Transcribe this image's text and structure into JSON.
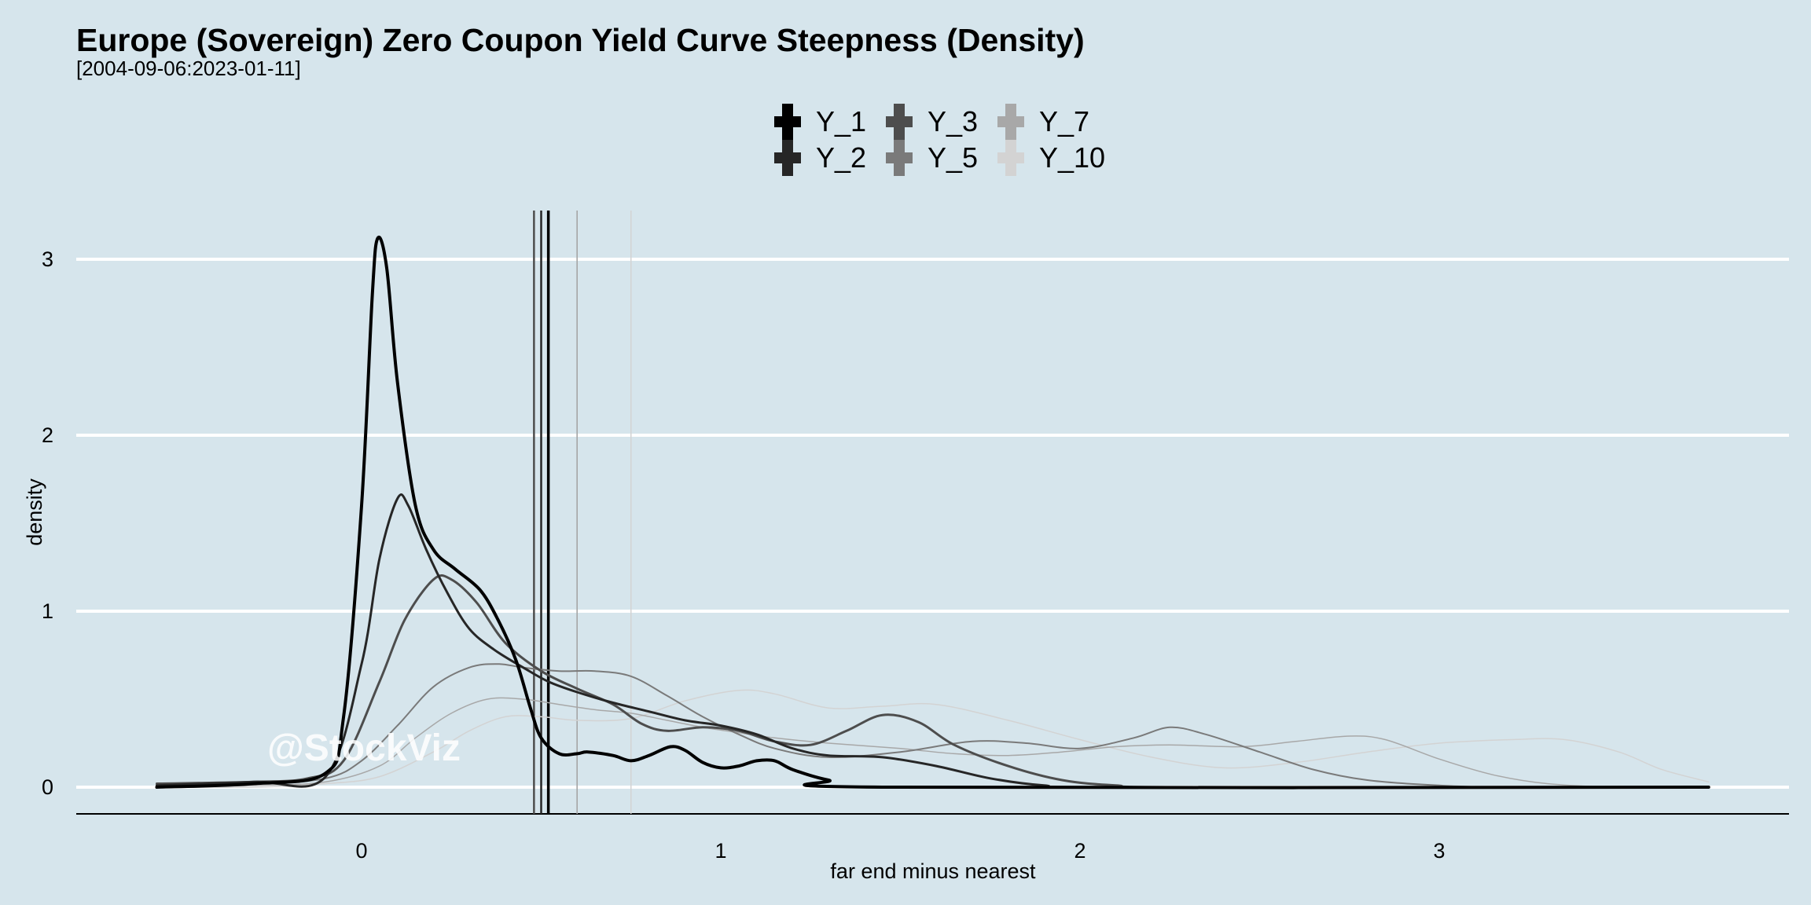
{
  "chart_data": {
    "type": "line",
    "title": "Europe (Sovereign) Zero Coupon Yield Curve Steepness (Density)",
    "subtitle": "[2004-09-06:2023-01-11]",
    "xlabel": "far end minus nearest",
    "ylabel": "density",
    "xlim": [
      -0.8,
      3.96
    ],
    "ylim": [
      -0.15,
      3.3
    ],
    "x_ticks": [
      0,
      1,
      2,
      3
    ],
    "x_tick_labels": [
      "0",
      "1",
      "2",
      "3"
    ],
    "y_ticks": [
      0,
      1,
      2,
      3
    ],
    "y_tick_labels": [
      "0",
      "1",
      "2",
      "3"
    ],
    "grid": "horizontal",
    "legend_position": "top",
    "watermark": "@StockViz",
    "series": [
      {
        "name": "Y_1",
        "color": "#000000",
        "stroke_width": 4,
        "mean": 0.52,
        "points": [
          [
            -0.57,
            0.0
          ],
          [
            -0.3,
            0.02
          ],
          [
            -0.1,
            0.08
          ],
          [
            -0.05,
            0.4
          ],
          [
            0.0,
            1.6
          ],
          [
            0.03,
            2.8
          ],
          [
            0.045,
            3.12
          ],
          [
            0.07,
            2.95
          ],
          [
            0.1,
            2.3
          ],
          [
            0.15,
            1.6
          ],
          [
            0.2,
            1.35
          ],
          [
            0.26,
            1.24
          ],
          [
            0.33,
            1.12
          ],
          [
            0.38,
            0.95
          ],
          [
            0.43,
            0.72
          ],
          [
            0.47,
            0.45
          ],
          [
            0.5,
            0.28
          ],
          [
            0.55,
            0.19
          ],
          [
            0.6,
            0.19
          ],
          [
            0.63,
            0.2
          ],
          [
            0.7,
            0.18
          ],
          [
            0.75,
            0.15
          ],
          [
            0.8,
            0.18
          ],
          [
            0.86,
            0.23
          ],
          [
            0.9,
            0.21
          ],
          [
            0.95,
            0.14
          ],
          [
            1.0,
            0.11
          ],
          [
            1.05,
            0.12
          ],
          [
            1.1,
            0.15
          ],
          [
            1.15,
            0.15
          ],
          [
            1.2,
            0.1
          ],
          [
            1.3,
            0.04
          ],
          [
            1.45,
            0.0
          ],
          [
            3.75,
            0.0
          ]
        ]
      },
      {
        "name": "Y_2",
        "color": "#262626",
        "stroke_width": 3,
        "mean": 0.5,
        "points": [
          [
            -0.57,
            0.01
          ],
          [
            -0.3,
            0.03
          ],
          [
            -0.1,
            0.06
          ],
          [
            0.0,
            0.7
          ],
          [
            0.05,
            1.3
          ],
          [
            0.1,
            1.64
          ],
          [
            0.13,
            1.6
          ],
          [
            0.18,
            1.35
          ],
          [
            0.24,
            1.1
          ],
          [
            0.3,
            0.9
          ],
          [
            0.37,
            0.78
          ],
          [
            0.45,
            0.68
          ],
          [
            0.52,
            0.6
          ],
          [
            0.6,
            0.54
          ],
          [
            0.7,
            0.48
          ],
          [
            0.8,
            0.43
          ],
          [
            0.9,
            0.38
          ],
          [
            1.0,
            0.35
          ],
          [
            1.1,
            0.3
          ],
          [
            1.2,
            0.22
          ],
          [
            1.3,
            0.18
          ],
          [
            1.45,
            0.17
          ],
          [
            1.6,
            0.12
          ],
          [
            1.75,
            0.05
          ],
          [
            1.9,
            0.01
          ],
          [
            2.1,
            0.0
          ],
          [
            3.75,
            0.0
          ]
        ]
      },
      {
        "name": "Y_3",
        "color": "#4d4d4d",
        "stroke_width": 3,
        "mean": 0.48,
        "points": [
          [
            -0.57,
            0.02
          ],
          [
            -0.3,
            0.03
          ],
          [
            -0.15,
            0.05
          ],
          [
            -0.05,
            0.15
          ],
          [
            0.05,
            0.6
          ],
          [
            0.12,
            0.95
          ],
          [
            0.2,
            1.18
          ],
          [
            0.25,
            1.18
          ],
          [
            0.32,
            1.05
          ],
          [
            0.4,
            0.82
          ],
          [
            0.5,
            0.66
          ],
          [
            0.6,
            0.56
          ],
          [
            0.7,
            0.47
          ],
          [
            0.78,
            0.36
          ],
          [
            0.85,
            0.32
          ],
          [
            0.95,
            0.34
          ],
          [
            1.05,
            0.32
          ],
          [
            1.15,
            0.26
          ],
          [
            1.25,
            0.24
          ],
          [
            1.35,
            0.32
          ],
          [
            1.45,
            0.41
          ],
          [
            1.55,
            0.37
          ],
          [
            1.65,
            0.24
          ],
          [
            1.8,
            0.12
          ],
          [
            1.95,
            0.04
          ],
          [
            2.1,
            0.01
          ],
          [
            2.3,
            0.0
          ],
          [
            3.75,
            0.0
          ]
        ]
      },
      {
        "name": "Y_5",
        "color": "#7a7a7a",
        "stroke_width": 2,
        "mean": 0.6,
        "points": [
          [
            -0.57,
            0.01
          ],
          [
            -0.3,
            0.02
          ],
          [
            -0.1,
            0.05
          ],
          [
            0.0,
            0.15
          ],
          [
            0.1,
            0.35
          ],
          [
            0.2,
            0.57
          ],
          [
            0.3,
            0.68
          ],
          [
            0.38,
            0.7
          ],
          [
            0.45,
            0.68
          ],
          [
            0.55,
            0.66
          ],
          [
            0.65,
            0.66
          ],
          [
            0.75,
            0.63
          ],
          [
            0.85,
            0.52
          ],
          [
            0.95,
            0.4
          ],
          [
            1.05,
            0.3
          ],
          [
            1.15,
            0.22
          ],
          [
            1.3,
            0.17
          ],
          [
            1.5,
            0.2
          ],
          [
            1.7,
            0.26
          ],
          [
            1.85,
            0.25
          ],
          [
            2.0,
            0.22
          ],
          [
            2.15,
            0.28
          ],
          [
            2.25,
            0.34
          ],
          [
            2.35,
            0.3
          ],
          [
            2.5,
            0.2
          ],
          [
            2.65,
            0.1
          ],
          [
            2.8,
            0.04
          ],
          [
            3.0,
            0.01
          ],
          [
            3.2,
            0.0
          ],
          [
            3.75,
            0.0
          ]
        ]
      },
      {
        "name": "Y_7",
        "color": "#a8a8a8",
        "stroke_width": 1.5,
        "mean": 0.6,
        "points": [
          [
            -0.57,
            0.0
          ],
          [
            -0.3,
            0.01
          ],
          [
            -0.1,
            0.03
          ],
          [
            0.05,
            0.12
          ],
          [
            0.15,
            0.28
          ],
          [
            0.25,
            0.42
          ],
          [
            0.35,
            0.5
          ],
          [
            0.45,
            0.5
          ],
          [
            0.55,
            0.47
          ],
          [
            0.65,
            0.44
          ],
          [
            0.75,
            0.42
          ],
          [
            0.85,
            0.38
          ],
          [
            0.95,
            0.34
          ],
          [
            1.05,
            0.31
          ],
          [
            1.15,
            0.28
          ],
          [
            1.3,
            0.25
          ],
          [
            1.5,
            0.22
          ],
          [
            1.65,
            0.19
          ],
          [
            1.8,
            0.18
          ],
          [
            1.95,
            0.2
          ],
          [
            2.1,
            0.23
          ],
          [
            2.25,
            0.24
          ],
          [
            2.45,
            0.23
          ],
          [
            2.6,
            0.26
          ],
          [
            2.75,
            0.29
          ],
          [
            2.85,
            0.27
          ],
          [
            3.0,
            0.16
          ],
          [
            3.15,
            0.07
          ],
          [
            3.3,
            0.02
          ],
          [
            3.5,
            0.0
          ],
          [
            3.75,
            0.0
          ]
        ]
      },
      {
        "name": "Y_10",
        "color": "#d3d3d3",
        "stroke_width": 1.5,
        "mean": 0.75,
        "points": [
          [
            -0.57,
            0.0
          ],
          [
            -0.3,
            0.0
          ],
          [
            -0.1,
            0.02
          ],
          [
            0.05,
            0.06
          ],
          [
            0.2,
            0.2
          ],
          [
            0.3,
            0.32
          ],
          [
            0.4,
            0.4
          ],
          [
            0.5,
            0.4
          ],
          [
            0.6,
            0.38
          ],
          [
            0.75,
            0.39
          ],
          [
            0.9,
            0.49
          ],
          [
            1.05,
            0.55
          ],
          [
            1.15,
            0.53
          ],
          [
            1.3,
            0.45
          ],
          [
            1.45,
            0.46
          ],
          [
            1.6,
            0.47
          ],
          [
            1.8,
            0.38
          ],
          [
            2.0,
            0.27
          ],
          [
            2.2,
            0.17
          ],
          [
            2.4,
            0.11
          ],
          [
            2.6,
            0.14
          ],
          [
            2.8,
            0.2
          ],
          [
            3.0,
            0.25
          ],
          [
            3.2,
            0.27
          ],
          [
            3.35,
            0.27
          ],
          [
            3.5,
            0.2
          ],
          [
            3.62,
            0.1
          ],
          [
            3.75,
            0.03
          ]
        ]
      }
    ]
  }
}
